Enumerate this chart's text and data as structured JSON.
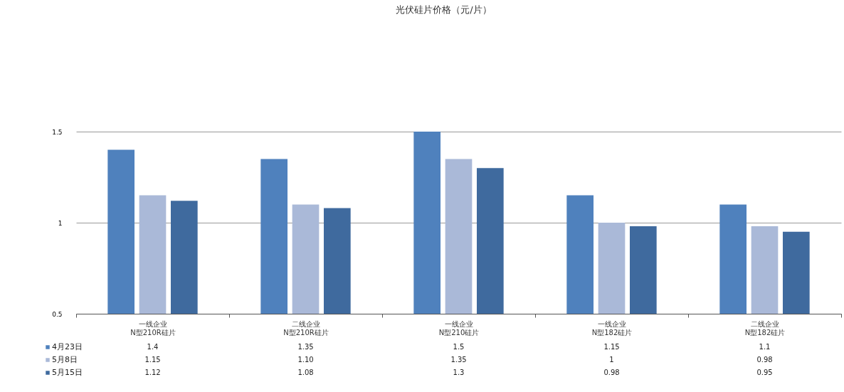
{
  "chart_data": {
    "type": "bar",
    "title": "光伏硅片价格（元/片）",
    "categories": [
      "一线企业\nN型210R硅片",
      "二线企业\nN型210R硅片",
      "一线企业\nN型210硅片",
      "一线企业\nN型182硅片",
      "二线企业\nN型182硅片"
    ],
    "series": [
      {
        "name": "4月23日",
        "color": "#4f81bd",
        "values": [
          1.4,
          1.35,
          1.5,
          1.15,
          1.1
        ],
        "value_labels": [
          "1.4",
          "1.35",
          "1.5",
          "1.15",
          "1.1"
        ]
      },
      {
        "name": "5月8日",
        "color": "#aab9d8",
        "values": [
          1.15,
          1.1,
          1.35,
          1,
          0.98
        ],
        "value_labels": [
          "1.15",
          "1.10",
          "1.35",
          "1",
          "0.98"
        ]
      },
      {
        "name": "5月15日",
        "color": "#3f6a9e",
        "values": [
          1.12,
          1.08,
          1.3,
          0.98,
          0.95
        ],
        "value_labels": [
          "1.12",
          "1.08",
          "1.3",
          "0.98",
          "0.95"
        ]
      }
    ],
    "ylim": [
      0.5,
      1.5
    ],
    "yticks": [
      0.5,
      1,
      1.5
    ],
    "grid": "y",
    "legend": "bottom left"
  }
}
